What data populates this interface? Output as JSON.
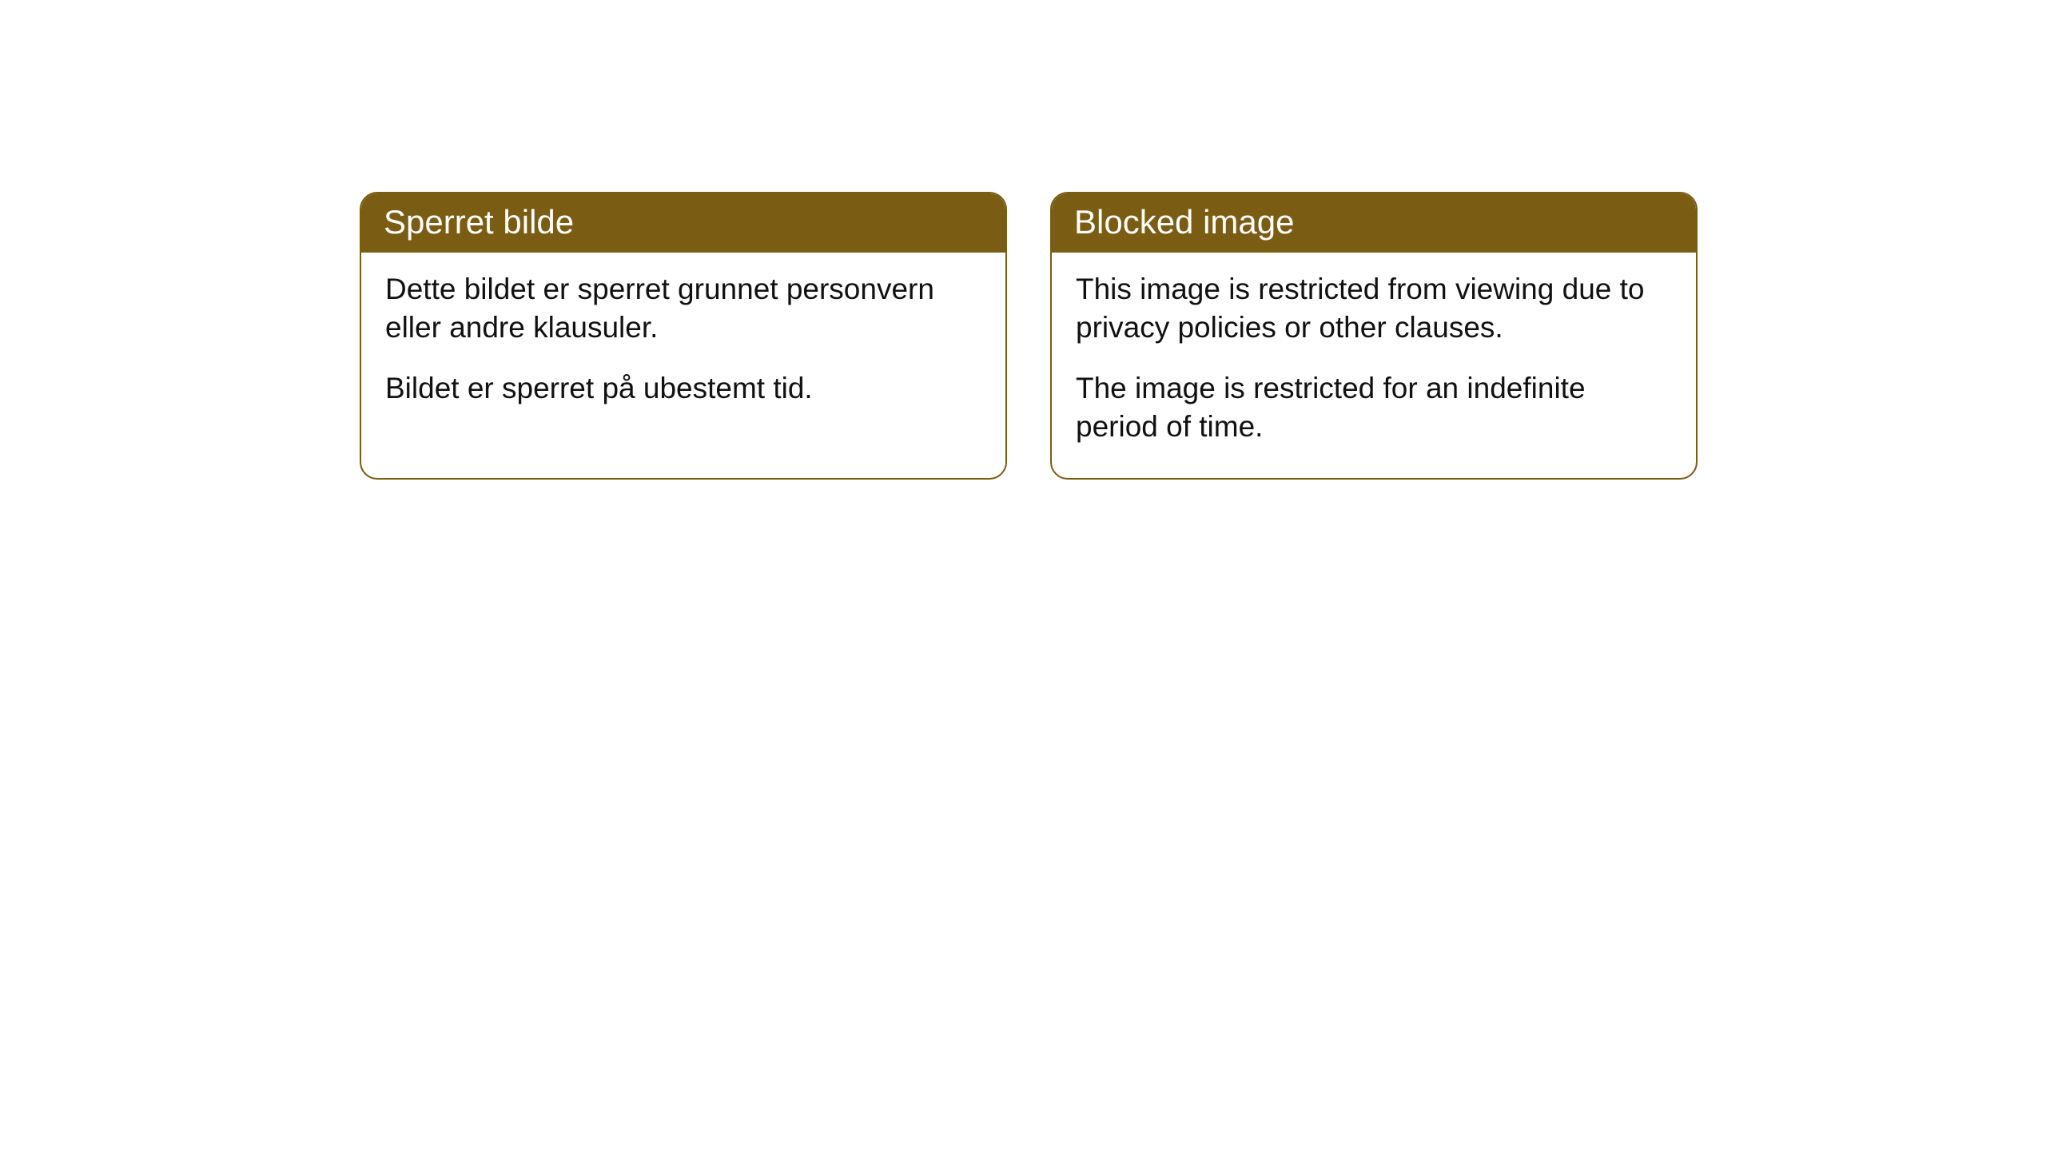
{
  "cards": [
    {
      "title": "Sperret bilde",
      "paragraph1": "Dette bildet er sperret grunnet personvern eller andre klausuler.",
      "paragraph2": "Bildet er sperret på ubestemt tid."
    },
    {
      "title": "Blocked image",
      "paragraph1": "This image is restricted from viewing due to privacy policies or other clauses.",
      "paragraph2": "The image is restricted for an indefinite period of time."
    }
  ],
  "styling": {
    "header_background": "#7a5c13",
    "header_text_color": "#ffffff",
    "border_color": "#7a5c13",
    "body_background": "#ffffff",
    "body_text_color": "#111111",
    "border_radius": 22,
    "title_fontsize": 42,
    "body_fontsize": 37
  }
}
